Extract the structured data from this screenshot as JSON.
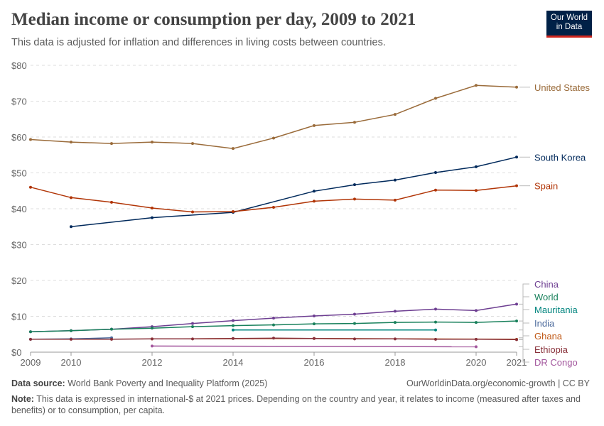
{
  "header": {
    "title": "Median income or consumption per day, 2009 to 2021",
    "subtitle": "This data is adjusted for inflation and differences in living costs between countries.",
    "logo_line1": "Our World",
    "logo_line2": "in Data"
  },
  "footer": {
    "source_label": "Data source:",
    "source_text": "World Bank Poverty and Inequality Platform (2025)",
    "url": "OurWorldinData.org/economic-growth | CC BY",
    "note_label": "Note:",
    "note_text": "This data is expressed in international-$ at 2021 prices. Depending on the country and year, it relates to income (measured after taxes and benefits) or to consumption, per capita."
  },
  "chart_data": {
    "type": "line",
    "title": "Median income or consumption per day, 2009 to 2021",
    "xlim": [
      2009,
      2021
    ],
    "ylim": [
      0,
      80
    ],
    "x_ticks": [
      2009,
      2010,
      2012,
      2014,
      2016,
      2018,
      2020,
      2021
    ],
    "y_ticks": [
      0,
      10,
      20,
      30,
      40,
      50,
      60,
      70,
      80
    ],
    "y_tick_labels": [
      "$0",
      "$10",
      "$20",
      "$30",
      "$40",
      "$50",
      "$60",
      "$70",
      "$80"
    ],
    "grid": "horizontal dashed",
    "legend": "right-side line labels",
    "series": [
      {
        "name": "United States",
        "color": "#9a6b3a",
        "x": [
          2009,
          2010,
          2011,
          2012,
          2013,
          2014,
          2015,
          2016,
          2017,
          2018,
          2019,
          2020,
          2021
        ],
        "y": [
          59.3,
          58.6,
          58.2,
          58.6,
          58.2,
          56.8,
          59.7,
          63.2,
          64.1,
          66.3,
          70.8,
          74.4,
          73.9
        ]
      },
      {
        "name": "South Korea",
        "color": "#00295b",
        "x": [
          2010,
          2012,
          2014,
          2016,
          2017,
          2018,
          2019,
          2020,
          2021
        ],
        "y": [
          35.0,
          37.5,
          39.0,
          44.9,
          46.7,
          48.0,
          50.1,
          51.7,
          54.4
        ]
      },
      {
        "name": "Spain",
        "color": "#b13507",
        "x": [
          2009,
          2010,
          2011,
          2012,
          2013,
          2014,
          2015,
          2016,
          2017,
          2018,
          2019,
          2020,
          2021
        ],
        "y": [
          46.0,
          43.1,
          41.8,
          40.2,
          39.1,
          39.2,
          40.4,
          42.1,
          42.7,
          42.4,
          45.2,
          45.1,
          46.4
        ]
      },
      {
        "name": "China",
        "color": "#6d3e91",
        "x": [
          2009,
          2010,
          2011,
          2012,
          2013,
          2014,
          2015,
          2016,
          2017,
          2018,
          2019,
          2020,
          2021
        ],
        "y": [
          5.7,
          6.0,
          6.4,
          7.1,
          8.0,
          8.8,
          9.5,
          10.1,
          10.6,
          11.4,
          12.0,
          11.6,
          13.4
        ]
      },
      {
        "name": "World",
        "color": "#18805b",
        "x": [
          2009,
          2010,
          2011,
          2012,
          2013,
          2014,
          2015,
          2016,
          2017,
          2018,
          2019,
          2020,
          2021
        ],
        "y": [
          5.7,
          6.0,
          6.4,
          6.7,
          7.1,
          7.4,
          7.6,
          7.9,
          8.0,
          8.3,
          8.4,
          8.3,
          8.7
        ]
      },
      {
        "name": "Mauritania",
        "color": "#00847e",
        "x": [
          2014,
          2019
        ],
        "y": [
          6.2,
          6.2
        ]
      },
      {
        "name": "India",
        "color": "#4c6a9c",
        "x": [
          2009,
          2010,
          2011
        ],
        "y": [
          3.6,
          3.7,
          4.0
        ]
      },
      {
        "name": "Ghana",
        "color": "#c05917",
        "x": [
          2012,
          2016,
          2021
        ],
        "y": [
          3.7,
          3.8,
          3.6
        ]
      },
      {
        "name": "Ethiopia",
        "color": "#883039",
        "x": [
          2009,
          2010,
          2011,
          2012,
          2013,
          2014,
          2015,
          2016,
          2017,
          2018,
          2019,
          2020,
          2021
        ],
        "y": [
          3.6,
          3.6,
          3.6,
          3.7,
          3.7,
          3.8,
          3.9,
          3.8,
          3.7,
          3.7,
          3.6,
          3.6,
          3.5
        ]
      },
      {
        "name": "DR Congo",
        "color": "#a2559c",
        "x": [
          2012,
          2020
        ],
        "y": [
          1.7,
          1.5
        ]
      }
    ]
  }
}
